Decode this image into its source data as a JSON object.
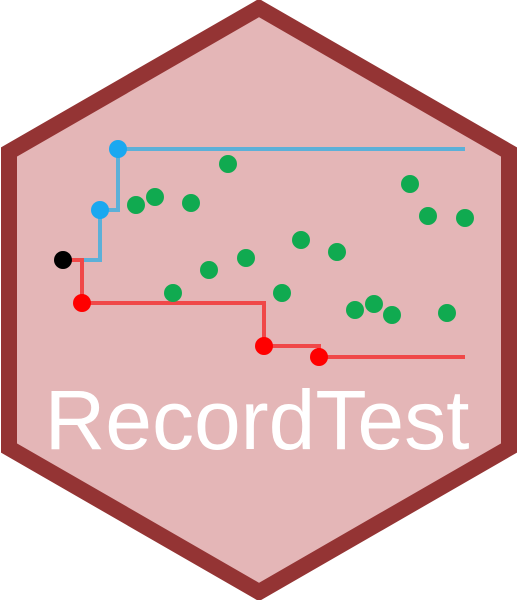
{
  "logo": {
    "wordmark": "RecordTest",
    "colors": {
      "hex_fill": "#e4b6b7",
      "hex_border": "#943434",
      "upper_records": "#5cb0d8",
      "upper_points": "#1aa8f0",
      "lower_records": "#f04848",
      "lower_points": "#ff0000",
      "start_point": "#000000",
      "other_points": "#10aa50",
      "text": "#ffffff"
    }
  }
}
